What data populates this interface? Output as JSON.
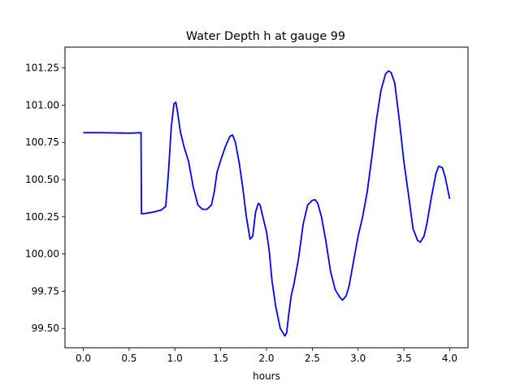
{
  "chart_data": {
    "type": "line",
    "title": "Water Depth h at gauge 99",
    "xlabel": "hours",
    "ylabel": "",
    "xlim": [
      -0.2,
      4.2
    ],
    "ylim": [
      99.37,
      101.39
    ],
    "xticks": [
      0.0,
      0.5,
      1.0,
      1.5,
      2.0,
      2.5,
      3.0,
      3.5,
      4.0
    ],
    "xtick_labels": [
      "0.0",
      "0.5",
      "1.0",
      "1.5",
      "2.0",
      "2.5",
      "3.0",
      "3.5",
      "4.0"
    ],
    "yticks": [
      99.5,
      99.75,
      100.0,
      100.25,
      100.5,
      100.75,
      101.0,
      101.25
    ],
    "ytick_labels": [
      "99.50",
      "99.75",
      "100.00",
      "100.25",
      "100.50",
      "100.75",
      "101.00",
      "101.25"
    ],
    "grid": false,
    "series": [
      {
        "color": "#0000ff",
        "x": [
          0.0,
          0.2,
          0.4,
          0.5,
          0.63,
          0.635,
          0.65,
          0.75,
          0.85,
          0.9,
          0.93,
          0.96,
          0.99,
          1.01,
          1.03,
          1.06,
          1.1,
          1.15,
          1.2,
          1.25,
          1.3,
          1.35,
          1.4,
          1.43,
          1.46,
          1.5,
          1.55,
          1.6,
          1.63,
          1.66,
          1.7,
          1.74,
          1.78,
          1.82,
          1.85,
          1.88,
          1.91,
          1.93,
          1.96,
          2.0,
          2.03,
          2.06,
          2.1,
          2.15,
          2.2,
          2.22,
          2.24,
          2.27,
          2.3,
          2.35,
          2.4,
          2.45,
          2.5,
          2.53,
          2.56,
          2.6,
          2.65,
          2.7,
          2.75,
          2.8,
          2.83,
          2.87,
          2.9,
          2.95,
          3.0,
          3.05,
          3.1,
          3.15,
          3.2,
          3.25,
          3.3,
          3.33,
          3.36,
          3.4,
          3.45,
          3.5,
          3.55,
          3.6,
          3.65,
          3.68,
          3.72,
          3.75,
          3.8,
          3.85,
          3.88,
          3.92,
          3.95,
          4.0
        ],
        "y": [
          100.815,
          100.815,
          100.813,
          100.812,
          100.815,
          100.27,
          100.27,
          100.28,
          100.295,
          100.32,
          100.55,
          100.85,
          101.01,
          101.02,
          100.95,
          100.82,
          100.72,
          100.62,
          100.45,
          100.33,
          100.3,
          100.3,
          100.33,
          100.42,
          100.55,
          100.63,
          100.72,
          100.79,
          100.8,
          100.75,
          100.62,
          100.45,
          100.25,
          100.1,
          100.12,
          100.28,
          100.34,
          100.33,
          100.25,
          100.15,
          100.02,
          99.82,
          99.65,
          99.5,
          99.45,
          99.47,
          99.58,
          99.72,
          99.8,
          99.97,
          100.2,
          100.33,
          100.36,
          100.365,
          100.34,
          100.25,
          100.08,
          99.88,
          99.76,
          99.71,
          99.69,
          99.72,
          99.78,
          99.95,
          100.12,
          100.25,
          100.42,
          100.65,
          100.9,
          101.1,
          101.21,
          101.23,
          101.22,
          101.15,
          100.9,
          100.62,
          100.4,
          100.17,
          100.09,
          100.08,
          100.12,
          100.2,
          100.38,
          100.54,
          100.59,
          100.58,
          100.52,
          100.37
        ]
      }
    ]
  }
}
